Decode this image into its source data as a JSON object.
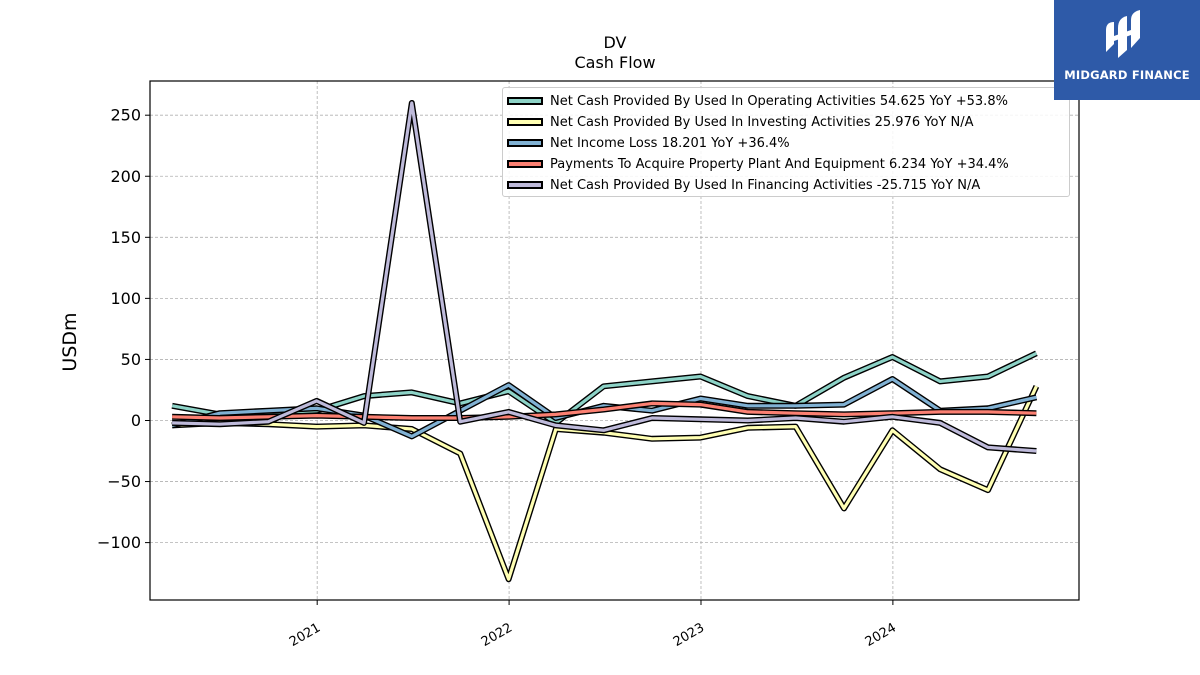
{
  "header": {
    "title_line1": "DV",
    "title_line2": "Cash Flow"
  },
  "logo": {
    "name": "MIDGARD FINANCE",
    "icon": "midgard-finance-logo-icon",
    "background_color": "#2e5aa8"
  },
  "chart_data": {
    "type": "line",
    "title": "DV\nCash Flow",
    "xlabel": "",
    "ylabel": "USDm",
    "ylim": [
      -147,
      278
    ],
    "yticks": [
      250,
      200,
      150,
      100,
      50,
      0,
      -50,
      -100
    ],
    "ytick_labels": [
      "250",
      "200",
      "150",
      "100",
      "50",
      "0",
      "−50",
      "−100"
    ],
    "xlim": [
      "2020-02-18",
      "2024-12-20"
    ],
    "xticks": [
      "2021-01-01",
      "2022-01-01",
      "2023-01-01",
      "2024-01-01"
    ],
    "xtick_labels": [
      "2021",
      "2022",
      "2023",
      "2024"
    ],
    "grid": true,
    "legend_position": "top-right",
    "x": [
      "2020-03-31",
      "2020-06-30",
      "2020-09-30",
      "2020-12-31",
      "2021-03-31",
      "2021-06-30",
      "2021-09-30",
      "2021-12-31",
      "2022-03-31",
      "2022-06-30",
      "2022-09-30",
      "2022-12-31",
      "2023-03-31",
      "2023-06-30",
      "2023-09-30",
      "2023-12-31",
      "2024-03-31",
      "2024-06-30",
      "2024-09-30"
    ],
    "series": [
      {
        "name": "Net Cash Provided By Used In Operating Activities",
        "legend_label": "Net Cash Provided By Used In Operating Activities  54.625 YoY +53.8%",
        "color": "#8dd3c7",
        "values": [
          12,
          5,
          6,
          8,
          20,
          23,
          14,
          24,
          -2,
          28,
          32,
          36,
          20,
          12,
          35,
          52,
          32,
          36,
          55
        ]
      },
      {
        "name": "Net Cash Provided By Used In Investing Activities",
        "legend_label": "Net Cash Provided By Used In Investing Activities  25.976 YoY N/A",
        "color": "#ffffb3",
        "values": [
          -4,
          -2,
          -3,
          -5,
          -4,
          -7,
          -27,
          -130,
          -7,
          -10,
          -15,
          -14,
          -6,
          -5,
          -72,
          -8,
          -40,
          -57,
          28
        ]
      },
      {
        "name": "Net Income Loss",
        "legend_label": "Net Income Loss  18.201 YoY +36.4%",
        "color": "#80b1d3",
        "values": [
          -4,
          6,
          8,
          10,
          4,
          -13,
          8,
          29,
          2,
          12,
          8,
          18,
          12,
          12,
          13,
          34,
          8,
          10,
          19
        ]
      },
      {
        "name": "Payments To Acquire Property Plant And Equipment",
        "legend_label": "Payments To Acquire Property Plant And Equipment  6.234 YoY +34.4%",
        "color": "#fb8072",
        "values": [
          3,
          2,
          3,
          4,
          3,
          2,
          2,
          3,
          5,
          9,
          14,
          13,
          7,
          6,
          5,
          6,
          7,
          7,
          6
        ]
      },
      {
        "name": "Net Cash Provided By Used In Financing Activities",
        "legend_label": "Net Cash Provided By Used In Financing Activities  -25.715 YoY N/A",
        "color": "#bebada",
        "values": [
          -2,
          -3,
          -1,
          16,
          -2,
          260,
          -1,
          7,
          -4,
          -8,
          2,
          1,
          0,
          2,
          -1,
          3,
          -2,
          -22,
          -25
        ]
      }
    ]
  }
}
